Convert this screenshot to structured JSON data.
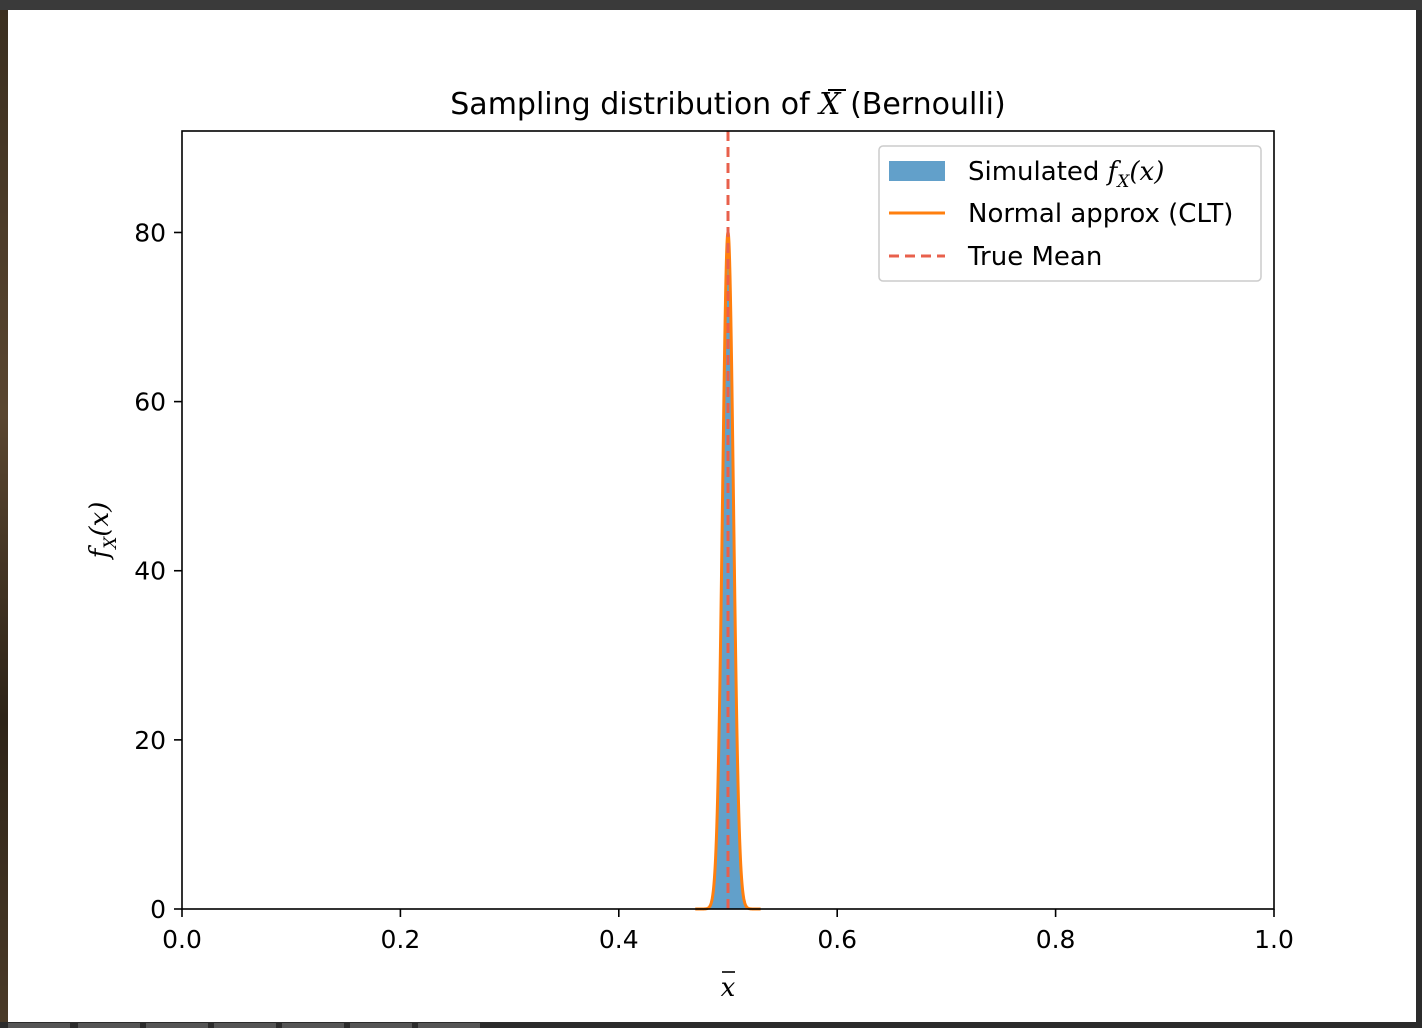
{
  "chart_data": {
    "type": "area",
    "title": {
      "prefix": "Sampling distribution of ",
      "symbol": "X",
      "suffix": " (Bernoulli)"
    },
    "xlabel": "x",
    "ylabel": {
      "f": "f",
      "sub": "X",
      "arg": "(x)"
    },
    "xlim": [
      0.0,
      1.0
    ],
    "ylim": [
      0,
      92
    ],
    "x_ticks": [
      0.0,
      0.2,
      0.4,
      0.6,
      0.8,
      1.0
    ],
    "x_tick_labels": [
      "0.0",
      "0.2",
      "0.4",
      "0.6",
      "0.8",
      "1.0"
    ],
    "y_ticks": [
      0,
      20,
      40,
      60,
      80
    ],
    "y_tick_labels": [
      "0",
      "20",
      "40",
      "60",
      "80"
    ],
    "grid": false,
    "legend_position": "top-right",
    "legend": {
      "simulated_prefix": "Simulated ",
      "simulated_f": "f",
      "simulated_sub": "X",
      "simulated_arg": "(x)",
      "normal": "Normal approx (CLT)",
      "true_mean": "True Mean"
    },
    "series": [
      {
        "kind": "histogram-area",
        "color": "#1f77b4",
        "alpha": 0.7,
        "mean": 0.5,
        "sd": 0.005,
        "peak": 80
      },
      {
        "kind": "normal-curve",
        "color": "#ff7f0e",
        "mean": 0.5,
        "sd": 0.005,
        "peak": 80
      },
      {
        "kind": "vertical-dashed",
        "color": "#e8604c",
        "x": 0.5
      }
    ]
  }
}
